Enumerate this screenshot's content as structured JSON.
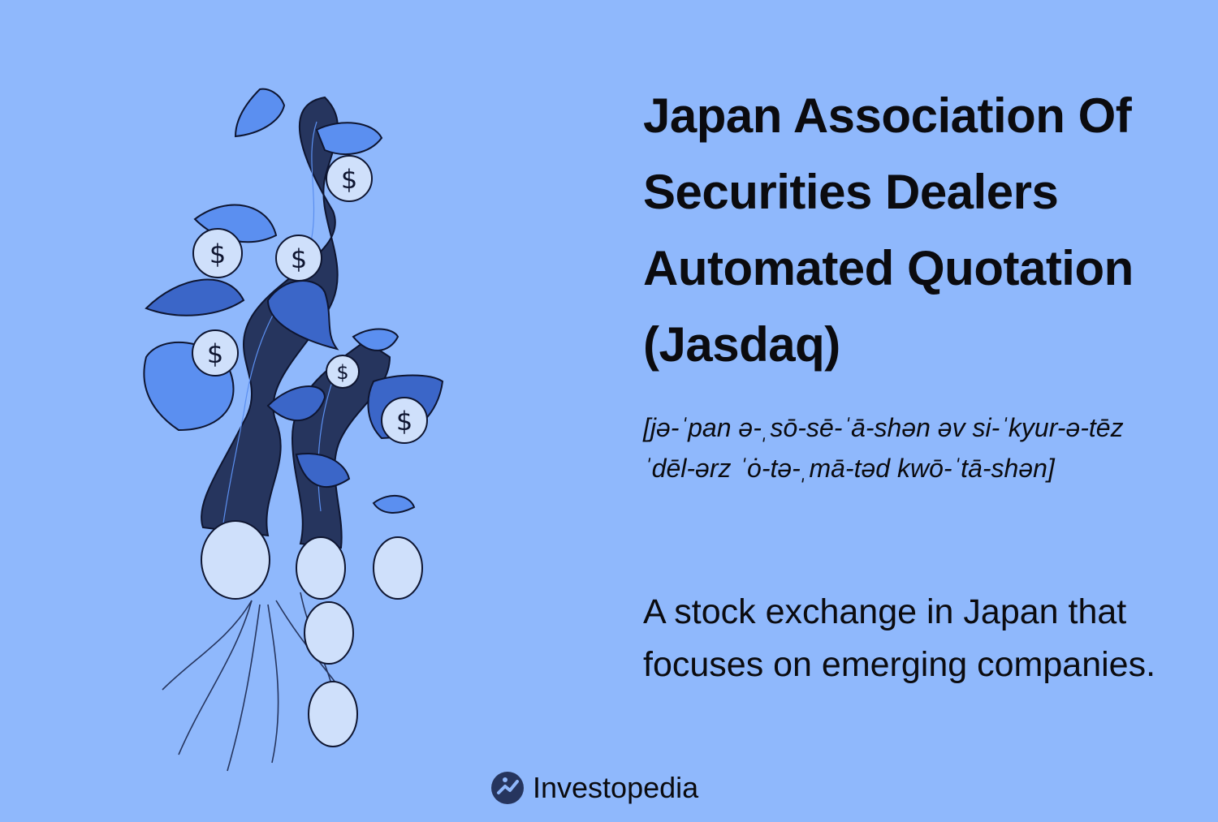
{
  "title": "Japan Association Of Securities Dealers Automated Quotation (Jasdaq)",
  "pronunciation": "[jə-ˈpan ə-ˌsō-sē-ˈā-shən əv si-ˈkyur-ə-tēz ˈdēl-ərz ˈȯ-tə-ˌmā-təd kwō-ˈtā-shən]",
  "definition": "A stock exchange in Japan that focuses on emerging companies.",
  "brand": {
    "name": "Investopedia",
    "icon": "investopedia-logo-icon"
  },
  "illustration": {
    "icon": "money-beanstalk-illustration",
    "coin_symbol": "$"
  },
  "colors": {
    "background": "#8fb8fc",
    "text": "#0b0b0f",
    "stem": "#26355e",
    "leaf": "#5b8ff0",
    "bean": "#cfe0fb"
  }
}
